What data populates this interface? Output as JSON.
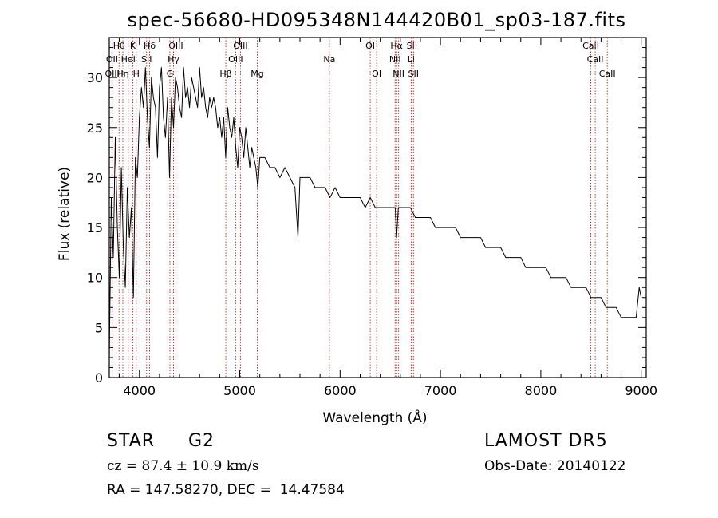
{
  "chart_data": {
    "type": "line",
    "title": "spec-56680-HD095348N144420B01_sp03-187.fits",
    "xlabel": "Wavelength (Å)",
    "ylabel": "Flux (relative)",
    "xlim": [
      3700,
      9050
    ],
    "ylim": [
      0,
      34
    ],
    "xticks": [
      4000,
      5000,
      6000,
      7000,
      8000,
      9000
    ],
    "yticks": [
      0,
      5,
      10,
      15,
      20,
      25,
      30
    ],
    "grid": false,
    "line_color": "#000000",
    "marker_color": "#b22222",
    "series": [
      {
        "x": [
          3700,
          3720,
          3740,
          3760,
          3780,
          3800,
          3820,
          3840,
          3860,
          3880,
          3900,
          3920,
          3940,
          3960,
          3980,
          4000,
          4020,
          4040,
          4060,
          4080,
          4100,
          4120,
          4140,
          4160,
          4180,
          4200,
          4220,
          4240,
          4260,
          4280,
          4300,
          4320,
          4340,
          4360,
          4380,
          4400,
          4420,
          4440,
          4460,
          4480,
          4500,
          4520,
          4540,
          4560,
          4580,
          4600,
          4620,
          4640,
          4660,
          4680,
          4700,
          4720,
          4740,
          4760,
          4780,
          4800,
          4820,
          4840,
          4860,
          4880,
          4900,
          4920,
          4940,
          4960,
          4980,
          5000,
          5020,
          5040,
          5060,
          5080,
          5100,
          5120,
          5140,
          5160,
          5180,
          5200,
          5250,
          5300,
          5350,
          5400,
          5450,
          5500,
          5550,
          5580,
          5600,
          5650,
          5700,
          5750,
          5800,
          5850,
          5900,
          5950,
          6000,
          6050,
          6100,
          6150,
          6200,
          6250,
          6300,
          6350,
          6400,
          6450,
          6500,
          6550,
          6563,
          6580,
          6600,
          6650,
          6700,
          6750,
          6800,
          6850,
          6900,
          6950,
          7000,
          7050,
          7100,
          7150,
          7200,
          7250,
          7300,
          7350,
          7400,
          7450,
          7500,
          7550,
          7600,
          7650,
          7700,
          7750,
          7800,
          7850,
          7900,
          7950,
          8000,
          8050,
          8100,
          8150,
          8200,
          8250,
          8300,
          8350,
          8400,
          8450,
          8500,
          8550,
          8600,
          8650,
          8700,
          8750,
          8800,
          8850,
          8900,
          8950,
          8980,
          9000
        ],
        "y": [
          2,
          18,
          12,
          24,
          15,
          10,
          21,
          13,
          9,
          19,
          14,
          17,
          8,
          22,
          20,
          26,
          29,
          27,
          31,
          26,
          23,
          30,
          28,
          27,
          22,
          29,
          31,
          26,
          24,
          28,
          20,
          28,
          25,
          30,
          29,
          27,
          26,
          31,
          28,
          29,
          27,
          30,
          29,
          28,
          27,
          31,
          28,
          29,
          27,
          26,
          28,
          27,
          28,
          27,
          25,
          26,
          24,
          26,
          22,
          27,
          25,
          24,
          26,
          23,
          21,
          25,
          24,
          22,
          25,
          23,
          21,
          23,
          22,
          21,
          19,
          22,
          22,
          21,
          21,
          20,
          21,
          20,
          19,
          14,
          20,
          20,
          20,
          19,
          19,
          19,
          18,
          19,
          18,
          18,
          18,
          18,
          18,
          17,
          18,
          17,
          17,
          17,
          17,
          17,
          14,
          17,
          17,
          17,
          17,
          16,
          16,
          16,
          16,
          15,
          15,
          15,
          15,
          15,
          14,
          14,
          14,
          14,
          14,
          13,
          13,
          13,
          13,
          12,
          12,
          12,
          12,
          11,
          11,
          11,
          11,
          11,
          10,
          10,
          10,
          10,
          9,
          9,
          9,
          9,
          8,
          8,
          8,
          7,
          7,
          7,
          6,
          6,
          6,
          6,
          9,
          8
        ]
      }
    ],
    "lines": [
      {
        "label": "Hθ",
        "wave": 3797,
        "row": 0
      },
      {
        "label": "K",
        "wave": 3934,
        "row": 0
      },
      {
        "label": "Hδ",
        "wave": 4102,
        "row": 0
      },
      {
        "label": "OIII",
        "wave": 4363,
        "row": 0
      },
      {
        "label": "OIII",
        "wave": 5007,
        "row": 0
      },
      {
        "label": "OI",
        "wave": 6300,
        "row": 0
      },
      {
        "label": "Hα",
        "wave": 6563,
        "row": 0
      },
      {
        "label": "SII",
        "wave": 6716,
        "row": 0
      },
      {
        "label": "CaII",
        "wave": 8498,
        "row": 0
      },
      {
        "label": "OII",
        "wave": 3727,
        "row": 1
      },
      {
        "label": "HeI",
        "wave": 3889,
        "row": 1
      },
      {
        "label": "SII",
        "wave": 4072,
        "row": 1
      },
      {
        "label": "Hγ",
        "wave": 4340,
        "row": 1
      },
      {
        "label": "OIII",
        "wave": 4959,
        "row": 1
      },
      {
        "label": "Na",
        "wave": 5893,
        "row": 1
      },
      {
        "label": "NII",
        "wave": 6548,
        "row": 1
      },
      {
        "label": "Li",
        "wave": 6708,
        "row": 1
      },
      {
        "label": "CaII",
        "wave": 8542,
        "row": 1
      },
      {
        "label": "OIII",
        "wave": 3729,
        "row": 2
      },
      {
        "label": "Hη",
        "wave": 3835,
        "row": 2
      },
      {
        "label": "H",
        "wave": 3968,
        "row": 2
      },
      {
        "label": "G",
        "wave": 4304,
        "row": 2
      },
      {
        "label": "Hβ",
        "wave": 4861,
        "row": 2
      },
      {
        "label": "Mg",
        "wave": 5175,
        "row": 2
      },
      {
        "label": "OI",
        "wave": 6364,
        "row": 2
      },
      {
        "label": "NII",
        "wave": 6583,
        "row": 2
      },
      {
        "label": "SII",
        "wave": 6731,
        "row": 2
      },
      {
        "label": "CaII",
        "wave": 8662,
        "row": 2
      }
    ]
  },
  "info": {
    "object_class": "STAR",
    "subclass": "G2",
    "survey": "LAMOST DR5",
    "cz": "cz = 87.4 ± 10.9 km/s",
    "obs_date": "Obs-Date: 20140122",
    "coords": "RA = 147.58270, DEC =  14.47584"
  }
}
